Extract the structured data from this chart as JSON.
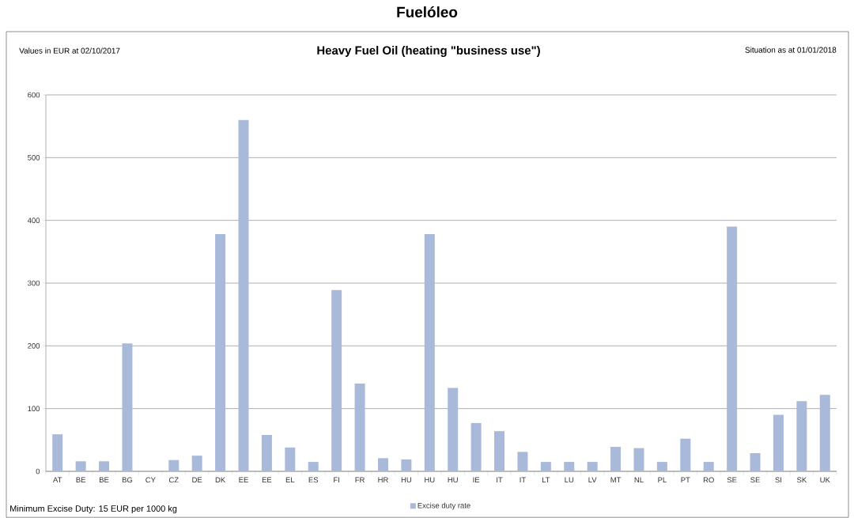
{
  "chart_data": {
    "type": "bar",
    "title": "Fuelóleo",
    "subtitle": "Heavy Fuel Oil (heating \"business use\")",
    "annotations": [
      "Values in EUR at 02/10/2017",
      "Situation as at 01/01/2018",
      "Minimum Excise Duty: 15 EUR per 1000 kg"
    ],
    "categories": [
      "AT",
      "BE",
      "BE",
      "BG",
      "CY",
      "CZ",
      "DE",
      "DK",
      "EE",
      "EE",
      "EL",
      "ES",
      "FI",
      "FR",
      "HR",
      "HU",
      "HU",
      "HU",
      "IE",
      "IT",
      "IT",
      "LT",
      "LU",
      "LV",
      "MT",
      "NL",
      "PL",
      "PT",
      "RO",
      "SE",
      "SE",
      "SI",
      "SK",
      "UK"
    ],
    "series": [
      {
        "name": "Excise duty rate",
        "color": "#a9b9d9",
        "values": [
          59,
          16,
          16,
          204,
          null,
          18,
          25,
          378,
          560,
          58,
          38,
          15,
          289,
          140,
          21,
          19,
          378,
          133,
          77,
          64,
          31,
          15,
          15,
          15,
          39,
          37,
          15,
          52,
          15,
          390,
          29,
          90,
          112,
          122
        ]
      }
    ],
    "ylim": [
      0,
      600
    ],
    "yticks": [
      0,
      100,
      200,
      300,
      400,
      500,
      600
    ],
    "grid": "y",
    "legend": "bottom"
  }
}
